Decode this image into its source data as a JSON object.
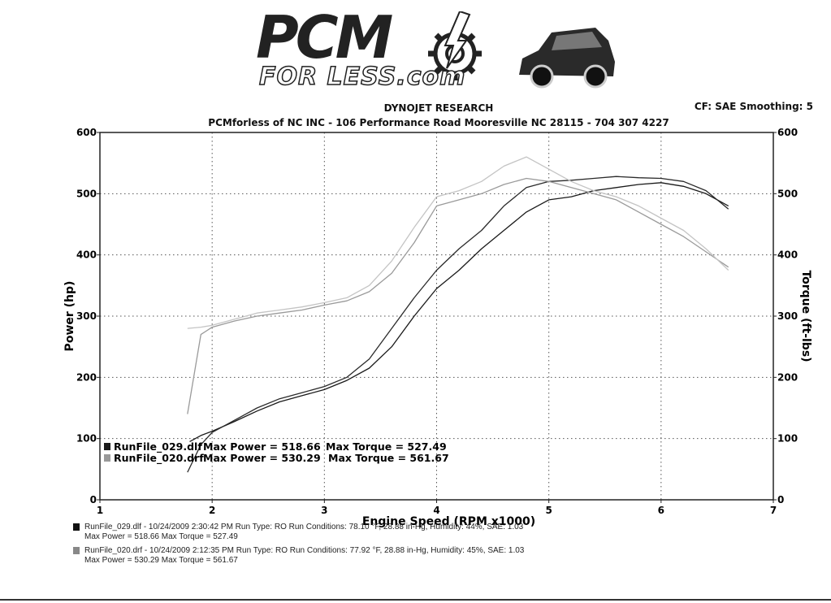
{
  "header": {
    "logo_main": "PCM",
    "logo_sub": "FOR LESS.com",
    "brand": "DYNOJET RESEARCH",
    "shop": "PCMforless of NC INC - 106 Performance Road Mooresville NC 28115 - 704 307 4227",
    "correction": "CF: SAE  Smoothing: 5"
  },
  "chart_data": {
    "type": "line",
    "xlabel": "Engine Speed (RPM x1000)",
    "ylabel": "Power (hp)",
    "y2label": "Torque (ft-lbs)",
    "xlim": [
      1,
      7
    ],
    "ylim": [
      0,
      600
    ],
    "y2lim": [
      0,
      600
    ],
    "xticks": [
      "1",
      "2",
      "3",
      "4",
      "5",
      "6",
      "7"
    ],
    "yticks": [
      "0",
      "100",
      "200",
      "300",
      "400",
      "500",
      "600"
    ],
    "y2ticks": [
      "0",
      "100",
      "200",
      "300",
      "400",
      "500",
      "600"
    ],
    "grid": true,
    "series": [
      {
        "name": "RunFile_029.dlf",
        "measure": "power",
        "color": "#1a1a1a",
        "x": [
          1.8,
          1.9,
          2.0,
          2.2,
          2.4,
          2.6,
          2.8,
          3.0,
          3.2,
          3.4,
          3.6,
          3.8,
          4.0,
          4.2,
          4.4,
          4.6,
          4.8,
          5.0,
          5.2,
          5.4,
          5.6,
          5.8,
          6.0,
          6.2,
          6.4,
          6.6
        ],
        "y": [
          95,
          105,
          112,
          128,
          145,
          160,
          170,
          180,
          195,
          215,
          250,
          300,
          345,
          375,
          410,
          440,
          470,
          490,
          495,
          505,
          510,
          515,
          518,
          512,
          500,
          480
        ]
      },
      {
        "name": "RunFile_020.drf",
        "measure": "power",
        "color": "#2a2a2a",
        "x": [
          1.78,
          1.9,
          2.0,
          2.2,
          2.4,
          2.6,
          2.8,
          3.0,
          3.2,
          3.4,
          3.6,
          3.8,
          4.0,
          4.2,
          4.4,
          4.6,
          4.8,
          5.0,
          5.2,
          5.4,
          5.6,
          5.8,
          6.0,
          6.2,
          6.4,
          6.6
        ],
        "y": [
          45,
          90,
          110,
          130,
          150,
          165,
          175,
          185,
          200,
          230,
          280,
          330,
          375,
          410,
          440,
          480,
          510,
          520,
          522,
          525,
          528,
          526,
          525,
          520,
          505,
          475
        ]
      },
      {
        "name": "RunFile_029.dlf",
        "measure": "torque",
        "color": "#9a9a9a",
        "x": [
          1.78,
          1.9,
          2.0,
          2.2,
          2.4,
          2.6,
          2.8,
          3.0,
          3.2,
          3.4,
          3.6,
          3.8,
          4.0,
          4.2,
          4.4,
          4.6,
          4.8,
          5.0,
          5.2,
          5.4,
          5.6,
          5.8,
          6.0,
          6.2,
          6.4,
          6.6
        ],
        "y": [
          140,
          270,
          282,
          292,
          300,
          305,
          310,
          318,
          325,
          340,
          370,
          420,
          480,
          490,
          500,
          515,
          525,
          520,
          510,
          500,
          490,
          470,
          450,
          430,
          405,
          380
        ]
      },
      {
        "name": "RunFile_020.drf",
        "measure": "torque",
        "color": "#c4c4c4",
        "x": [
          1.78,
          1.9,
          2.0,
          2.2,
          2.4,
          2.6,
          2.8,
          3.0,
          3.2,
          3.4,
          3.6,
          3.8,
          4.0,
          4.2,
          4.4,
          4.6,
          4.8,
          5.0,
          5.2,
          5.4,
          5.6,
          5.8,
          6.0,
          6.2,
          6.4,
          6.6
        ],
        "y": [
          280,
          282,
          285,
          295,
          305,
          310,
          315,
          322,
          330,
          350,
          390,
          445,
          495,
          505,
          520,
          545,
          560,
          540,
          520,
          505,
          495,
          480,
          460,
          440,
          410,
          375
        ]
      }
    ],
    "legend": {
      "placement": "bottom-left",
      "entries": [
        {
          "run": "RunFile_029.dlf",
          "power": "Max Power = 518.66",
          "torque": "Max Torque = 527.49",
          "swatch": "#1a1a1a"
        },
        {
          "run": "RunFile_020.drf",
          "power": "Max Power = 530.29",
          "torque": "Max Torque = 561.67",
          "swatch": "#999999"
        }
      ]
    }
  },
  "footer": {
    "runs": [
      {
        "line1": "RunFile_029.dlf - 10/24/2009 2:30:42 PM  Run Type: RO  Run Conditions: 78.10 °F, 28.88 in-Hg,  Humidity: 44%, SAE: 1.03",
        "line2": "Max Power = 518.66  Max Torque = 527.49"
      },
      {
        "line1": "RunFile_020.drf - 10/24/2009 2:12:35 PM  Run Type: RO  Run Conditions: 77.92 °F, 28.88 in-Hg,  Humidity: 45%, SAE: 1.03",
        "line2": "Max Power = 530.29  Max Torque = 561.67"
      }
    ]
  }
}
